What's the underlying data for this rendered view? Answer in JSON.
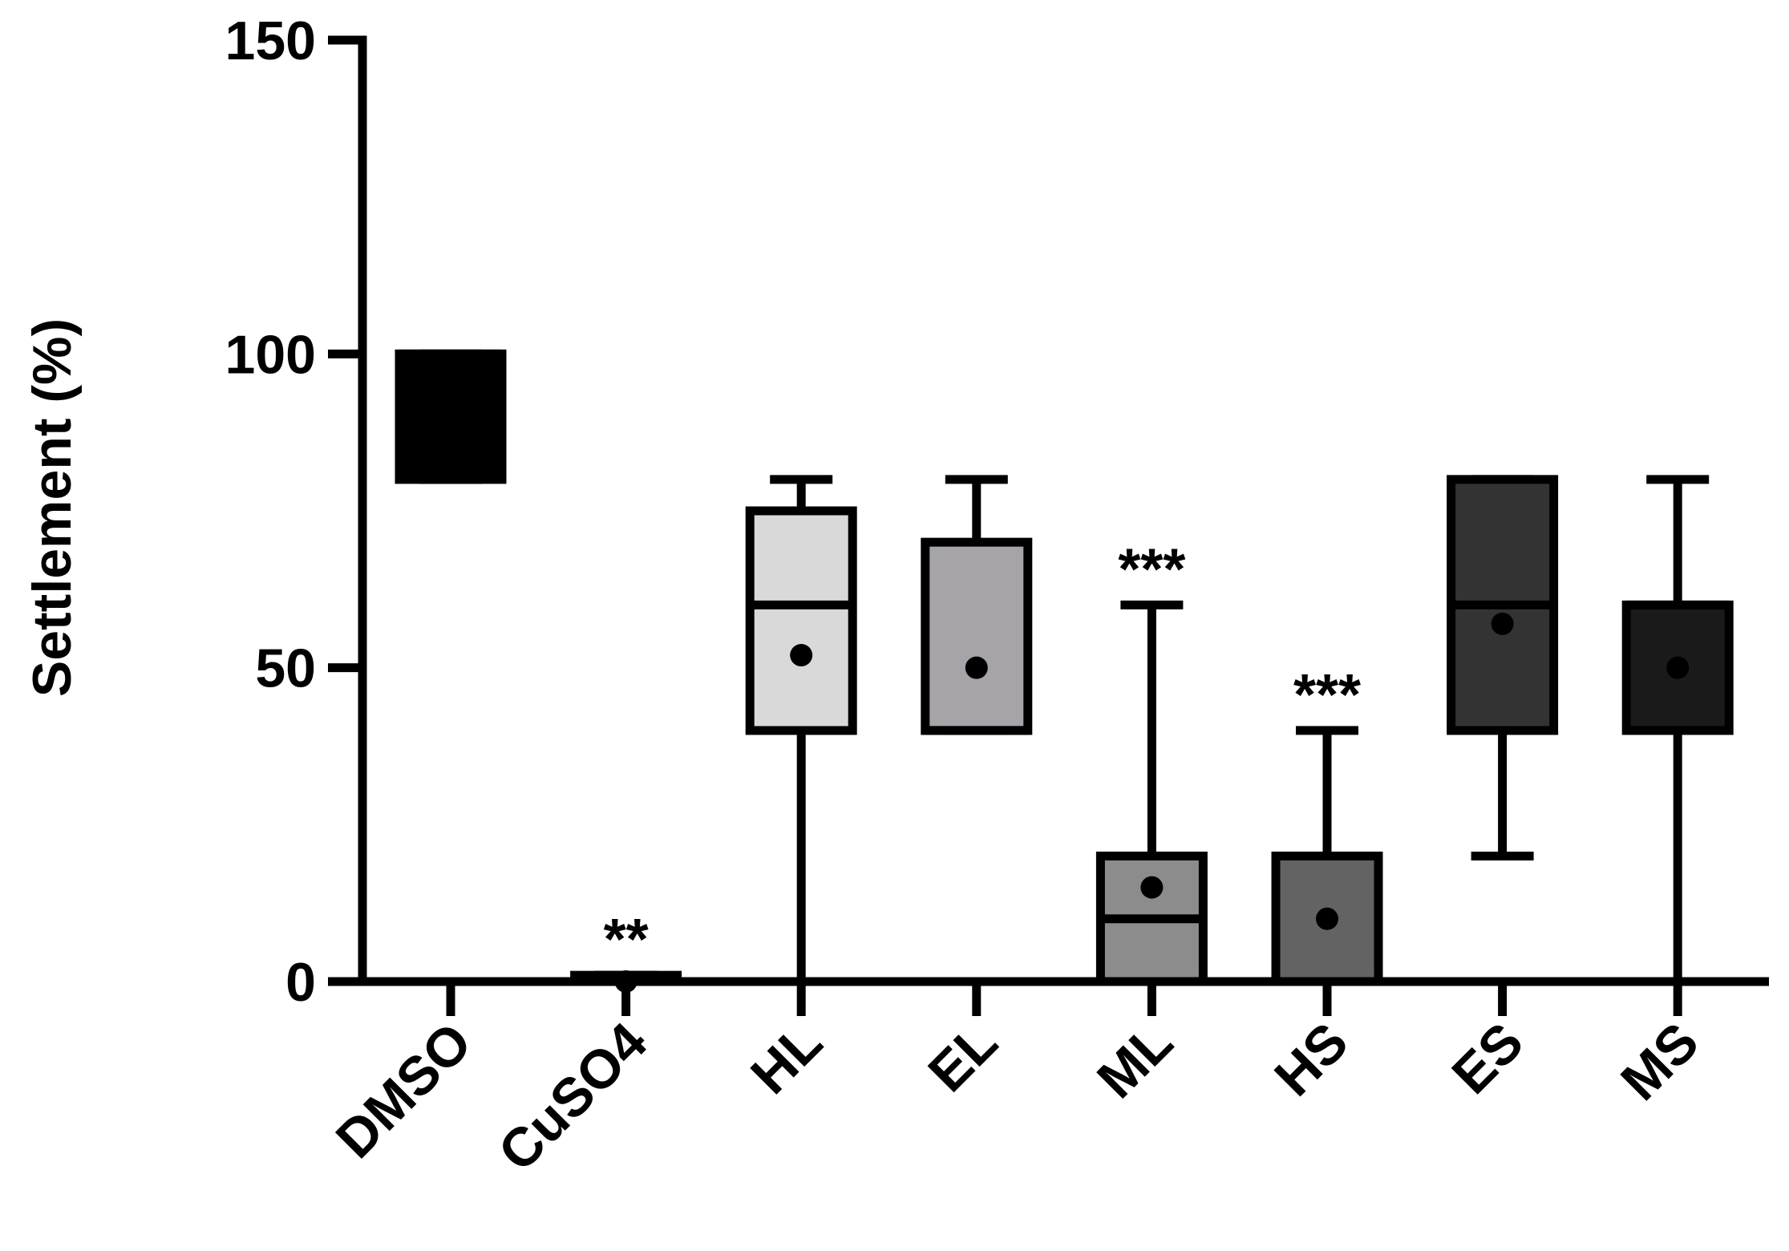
{
  "chart_data": {
    "type": "box",
    "y_label": "Settlement (%)",
    "categories": [
      "DMSO",
      "CuSO4",
      "HL",
      "EL",
      "ML",
      "HS",
      "ES",
      "MS"
    ],
    "min": [
      80,
      0,
      0,
      40,
      0,
      0,
      20,
      0
    ],
    "q1": [
      80,
      0,
      40,
      40,
      0,
      0,
      40,
      40
    ],
    "median": [
      100,
      0,
      60,
      40,
      10,
      0,
      60,
      60
    ],
    "q3": [
      100,
      1,
      75,
      70,
      20,
      20,
      80,
      60
    ],
    "max": [
      100,
      1,
      80,
      80,
      60,
      40,
      80,
      80
    ],
    "mean": [
      92,
      0,
      52,
      50,
      15,
      10,
      57,
      50
    ],
    "colors": [
      "#000000",
      "#000000",
      "#d9d9d9",
      "#a6a4a8",
      "#8c8c8c",
      "#636363",
      "#333333",
      "#1a1a1a"
    ],
    "annotations": [
      null,
      "**",
      null,
      null,
      "***",
      "***",
      null,
      null
    ],
    "ylim": [
      0,
      150
    ],
    "yticks": [
      0,
      50,
      100,
      150
    ]
  }
}
